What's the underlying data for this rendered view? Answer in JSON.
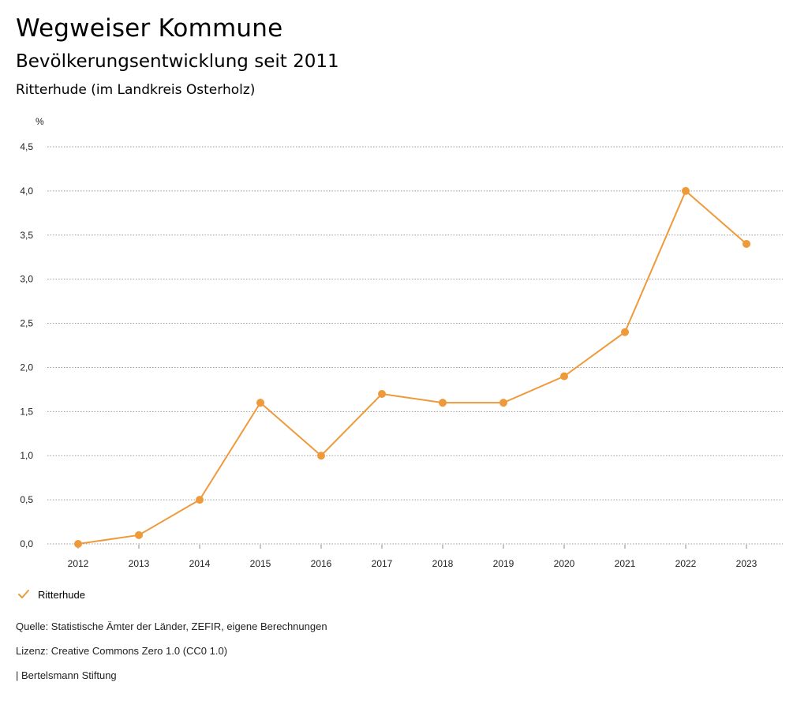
{
  "header": {
    "title": "Wegweiser Kommune",
    "subtitle": "Bevölkerungsentwicklung seit 2011",
    "region": "Ritterhude (im Landkreis Osterholz)"
  },
  "chart_data": {
    "type": "line",
    "unit_label": "%",
    "ylim": [
      0,
      4.5
    ],
    "yticks": [
      "0,0",
      "0,5",
      "1,0",
      "1,5",
      "2,0",
      "2,5",
      "3,0",
      "3,5",
      "4,0",
      "4,5"
    ],
    "x": [
      "2012",
      "2013",
      "2014",
      "2015",
      "2016",
      "2017",
      "2018",
      "2019",
      "2020",
      "2021",
      "2022",
      "2023"
    ],
    "series": [
      {
        "name": "Ritterhude",
        "color": "#ee9a3a",
        "values": [
          0.0,
          0.1,
          0.5,
          1.6,
          1.0,
          1.7,
          1.6,
          1.6,
          1.9,
          2.4,
          4.0,
          3.4
        ]
      }
    ],
    "grid": true,
    "legend_position": "bottom-left"
  },
  "legend": {
    "label": "Ritterhude",
    "icon": "check-icon"
  },
  "footer": {
    "source": "Quelle: Statistische Ämter der Länder, ZEFIR, eigene Berechnungen",
    "license": "Lizenz: Creative Commons Zero 1.0 (CC0 1.0)",
    "publisher": "| Bertelsmann Stiftung"
  }
}
